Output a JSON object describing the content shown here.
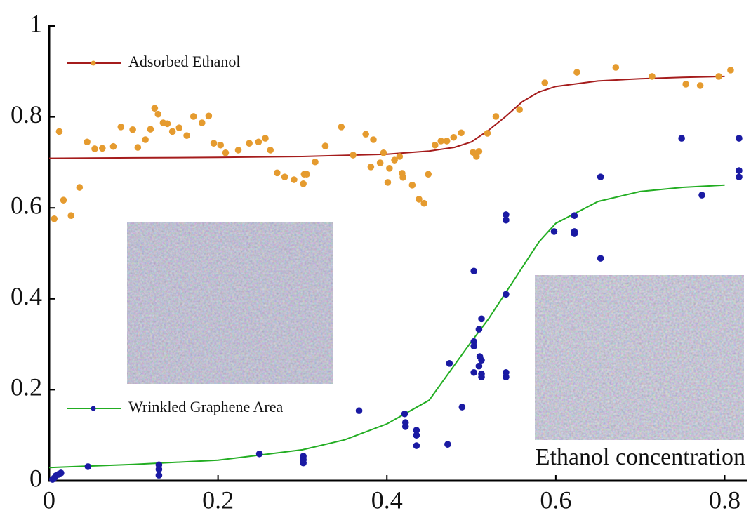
{
  "chart_data": {
    "type": "scatter",
    "annotation": "Ethanol concentration",
    "xlim": [
      0,
      0.827
    ],
    "ylim": [
      0,
      1
    ],
    "xticks": [
      0,
      0.2,
      0.4,
      0.6,
      0.8
    ],
    "yticks": [
      0,
      0.2,
      0.4,
      0.6,
      0.8,
      1
    ],
    "series": [
      {
        "name": "Adsorbed Ethanol",
        "color": "#a51c1c",
        "marker_color": "#e59b2f",
        "x": [
          0.006,
          0.012,
          0.017,
          0.026,
          0.036,
          0.045,
          0.054,
          0.063,
          0.076,
          0.085,
          0.099,
          0.105,
          0.114,
          0.12,
          0.125,
          0.129,
          0.135,
          0.14,
          0.146,
          0.154,
          0.163,
          0.171,
          0.181,
          0.189,
          0.195,
          0.203,
          0.209,
          0.224,
          0.237,
          0.248,
          0.256,
          0.262,
          0.27,
          0.279,
          0.29,
          0.301,
          0.302,
          0.305,
          0.315,
          0.327,
          0.346,
          0.36,
          0.375,
          0.384,
          0.381,
          0.392,
          0.396,
          0.401,
          0.403,
          0.409,
          0.415,
          0.418,
          0.419,
          0.43,
          0.438,
          0.444,
          0.449,
          0.457,
          0.464,
          0.471,
          0.479,
          0.488,
          0.502,
          0.506,
          0.509,
          0.519,
          0.529,
          0.557,
          0.587,
          0.625,
          0.671,
          0.714,
          0.754,
          0.771,
          0.793,
          0.807
        ],
        "values": [
          0.576,
          0.768,
          0.617,
          0.583,
          0.645,
          0.745,
          0.73,
          0.731,
          0.735,
          0.778,
          0.772,
          0.733,
          0.75,
          0.773,
          0.819,
          0.806,
          0.787,
          0.785,
          0.768,
          0.776,
          0.759,
          0.801,
          0.787,
          0.802,
          0.742,
          0.738,
          0.721,
          0.727,
          0.742,
          0.745,
          0.753,
          0.727,
          0.677,
          0.668,
          0.662,
          0.653,
          0.674,
          0.674,
          0.701,
          0.736,
          0.778,
          0.716,
          0.762,
          0.75,
          0.69,
          0.699,
          0.721,
          0.656,
          0.687,
          0.705,
          0.713,
          0.676,
          0.667,
          0.65,
          0.619,
          0.61,
          0.674,
          0.738,
          0.747,
          0.747,
          0.755,
          0.765,
          0.722,
          0.713,
          0.724,
          0.764,
          0.801,
          0.816,
          0.875,
          0.898,
          0.909,
          0.889,
          0.872,
          0.869,
          0.889,
          0.903
        ],
        "fit_x": [
          0,
          0.1,
          0.2,
          0.3,
          0.4,
          0.45,
          0.48,
          0.5,
          0.52,
          0.54,
          0.56,
          0.58,
          0.6,
          0.65,
          0.7,
          0.75,
          0.8
        ],
        "fit_values": [
          0.709,
          0.71,
          0.711,
          0.713,
          0.718,
          0.725,
          0.733,
          0.745,
          0.77,
          0.8,
          0.833,
          0.855,
          0.867,
          0.879,
          0.884,
          0.887,
          0.889
        ]
      },
      {
        "name": "Wrinkled Graphene Area",
        "color": "#22ad22",
        "marker_color": "#1a1aa3",
        "x": [
          0.004,
          0.006,
          0.008,
          0.011,
          0.014,
          0.046,
          0.13,
          0.13,
          0.13,
          0.249,
          0.301,
          0.301,
          0.301,
          0.367,
          0.421,
          0.422,
          0.422,
          0.435,
          0.435,
          0.435,
          0.472,
          0.474,
          0.489,
          0.503,
          0.503,
          0.503,
          0.503,
          0.509,
          0.51,
          0.512,
          0.509,
          0.512,
          0.512,
          0.512,
          0.541,
          0.541,
          0.541,
          0.541,
          0.541,
          0.598,
          0.622,
          0.622,
          0.622,
          0.653,
          0.653,
          0.749,
          0.773,
          0.817,
          0.817,
          0.817
        ],
        "values": [
          0.003,
          0.006,
          0.011,
          0.014,
          0.017,
          0.031,
          0.035,
          0.025,
          0.012,
          0.059,
          0.054,
          0.046,
          0.039,
          0.154,
          0.147,
          0.128,
          0.119,
          0.111,
          0.1,
          0.077,
          0.08,
          0.258,
          0.162,
          0.461,
          0.306,
          0.296,
          0.238,
          0.333,
          0.273,
          0.356,
          0.252,
          0.265,
          0.235,
          0.228,
          0.585,
          0.573,
          0.41,
          0.238,
          0.228,
          0.548,
          0.583,
          0.548,
          0.543,
          0.668,
          0.489,
          0.753,
          0.628,
          0.753,
          0.682,
          0.668
        ],
        "fit_x": [
          0,
          0.1,
          0.2,
          0.3,
          0.35,
          0.4,
          0.45,
          0.5,
          0.52,
          0.55,
          0.58,
          0.6,
          0.65,
          0.7,
          0.75,
          0.8
        ],
        "fit_values": [
          0.029,
          0.036,
          0.045,
          0.068,
          0.09,
          0.125,
          0.177,
          0.306,
          0.355,
          0.44,
          0.525,
          0.566,
          0.614,
          0.636,
          0.645,
          0.65
        ]
      }
    ]
  }
}
